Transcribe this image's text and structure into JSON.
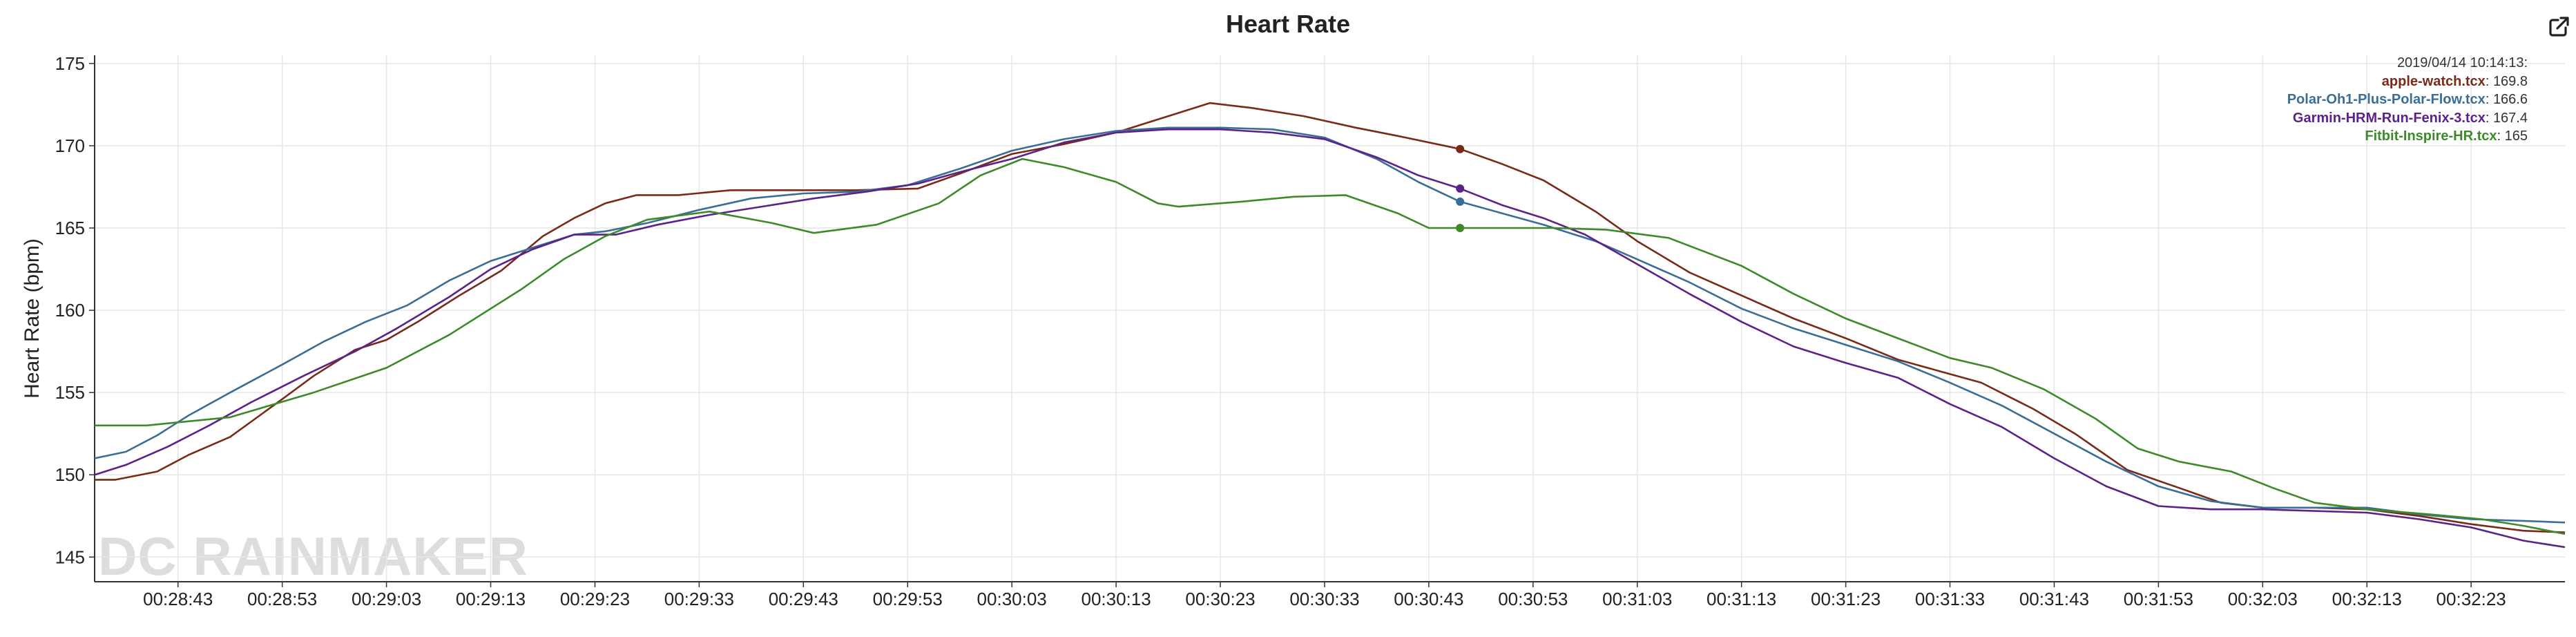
{
  "header": {
    "title": "Heart Rate",
    "export_icon": "external-link-icon"
  },
  "watermark": "DC RAINMAKER",
  "legend": {
    "timestamp": "2019/04/14 10:14:13:",
    "entries": [
      {
        "name": "apple-watch.tcx",
        "value": "169.8"
      },
      {
        "name": "Polar-Oh1-Plus-Polar-Flow.tcx",
        "value": "166.6"
      },
      {
        "name": "Garmin-HRM-Run-Fenix-3.tcx",
        "value": "167.4"
      },
      {
        "name": "Fitbit-Inspire-HR.tcx",
        "value": "165"
      }
    ]
  },
  "chart_data": {
    "type": "line",
    "title": "Heart Rate",
    "xlabel": "",
    "ylabel": "Heart Rate (bpm)",
    "ylim": [
      143.5,
      175.5
    ],
    "xlim": [
      "00:28:35",
      "00:32:32"
    ],
    "grid": true,
    "legend_position": "top-right",
    "x_ticks": [
      "00:28:43",
      "00:28:53",
      "00:29:03",
      "00:29:13",
      "00:29:23",
      "00:29:33",
      "00:29:43",
      "00:29:53",
      "00:30:03",
      "00:30:13",
      "00:30:23",
      "00:30:33",
      "00:30:43",
      "00:30:53",
      "00:31:03",
      "00:31:13",
      "00:31:23",
      "00:31:33",
      "00:31:43",
      "00:31:53",
      "00:32:03",
      "00:32:13",
      "00:32:23"
    ],
    "y_ticks": [
      145,
      150,
      155,
      160,
      165,
      170,
      175
    ],
    "cursor_time": "00:30:46",
    "series": [
      {
        "name": "apple-watch.tcx",
        "color": "#7a2a18",
        "points": [
          [
            "00:28:35",
            149.7
          ],
          [
            "00:28:37",
            149.7
          ],
          [
            "00:28:41",
            150.2
          ],
          [
            "00:28:44",
            151.2
          ],
          [
            "00:28:48",
            152.3
          ],
          [
            "00:28:53",
            154.6
          ],
          [
            "00:28:56",
            156.0
          ],
          [
            "00:29:00",
            157.6
          ],
          [
            "00:29:03",
            158.2
          ],
          [
            "00:29:06",
            159.3
          ],
          [
            "00:29:10",
            160.9
          ],
          [
            "00:29:14",
            162.4
          ],
          [
            "00:29:18",
            164.5
          ],
          [
            "00:29:21",
            165.6
          ],
          [
            "00:29:24",
            166.5
          ],
          [
            "00:29:27",
            167.0
          ],
          [
            "00:29:31",
            167.0
          ],
          [
            "00:29:36",
            167.3
          ],
          [
            "00:29:42",
            167.3
          ],
          [
            "00:29:48",
            167.3
          ],
          [
            "00:29:54",
            167.4
          ],
          [
            "00:29:58",
            168.3
          ],
          [
            "00:30:03",
            169.5
          ],
          [
            "00:30:08",
            170.1
          ],
          [
            "00:30:13",
            170.8
          ],
          [
            "00:30:18",
            171.8
          ],
          [
            "00:30:22",
            172.6
          ],
          [
            "00:30:26",
            172.3
          ],
          [
            "00:30:31",
            171.8
          ],
          [
            "00:30:36",
            171.1
          ],
          [
            "00:30:40",
            170.6
          ],
          [
            "00:30:46",
            169.8
          ],
          [
            "00:30:50",
            168.9
          ],
          [
            "00:30:54",
            167.9
          ],
          [
            "00:30:59",
            166.0
          ],
          [
            "00:31:03",
            164.2
          ],
          [
            "00:31:08",
            162.3
          ],
          [
            "00:31:13",
            160.9
          ],
          [
            "00:31:18",
            159.5
          ],
          [
            "00:31:23",
            158.3
          ],
          [
            "00:31:28",
            157.0
          ],
          [
            "00:31:32",
            156.3
          ],
          [
            "00:31:36",
            155.6
          ],
          [
            "00:31:41",
            154.0
          ],
          [
            "00:31:45",
            152.5
          ],
          [
            "00:31:50",
            150.3
          ],
          [
            "00:31:55",
            149.2
          ],
          [
            "00:31:59",
            148.3
          ],
          [
            "00:32:03",
            148.0
          ],
          [
            "00:32:08",
            148.0
          ],
          [
            "00:32:13",
            147.9
          ],
          [
            "00:32:18",
            147.5
          ],
          [
            "00:32:23",
            147.0
          ],
          [
            "00:32:28",
            146.6
          ],
          [
            "00:32:32",
            146.5
          ]
        ]
      },
      {
        "name": "Polar-Oh1-Plus-Polar-Flow.tcx",
        "color": "#3a6e96",
        "points": [
          [
            "00:28:35",
            151.0
          ],
          [
            "00:28:38",
            151.4
          ],
          [
            "00:28:41",
            152.4
          ],
          [
            "00:28:44",
            153.6
          ],
          [
            "00:28:48",
            155.0
          ],
          [
            "00:28:53",
            156.7
          ],
          [
            "00:28:57",
            158.1
          ],
          [
            "00:29:01",
            159.3
          ],
          [
            "00:29:05",
            160.3
          ],
          [
            "00:29:09",
            161.8
          ],
          [
            "00:29:13",
            163.0
          ],
          [
            "00:29:17",
            163.8
          ],
          [
            "00:29:21",
            164.6
          ],
          [
            "00:29:24",
            164.8
          ],
          [
            "00:29:28",
            165.3
          ],
          [
            "00:29:33",
            166.1
          ],
          [
            "00:29:38",
            166.8
          ],
          [
            "00:29:43",
            167.1
          ],
          [
            "00:29:48",
            167.2
          ],
          [
            "00:29:53",
            167.6
          ],
          [
            "00:29:58",
            168.6
          ],
          [
            "00:30:03",
            169.7
          ],
          [
            "00:30:08",
            170.4
          ],
          [
            "00:30:13",
            170.9
          ],
          [
            "00:30:18",
            171.1
          ],
          [
            "00:30:23",
            171.1
          ],
          [
            "00:30:28",
            171.0
          ],
          [
            "00:30:33",
            170.5
          ],
          [
            "00:30:38",
            169.2
          ],
          [
            "00:30:42",
            167.8
          ],
          [
            "00:30:46",
            166.6
          ],
          [
            "00:30:50",
            165.9
          ],
          [
            "00:30:54",
            165.2
          ],
          [
            "00:30:59",
            164.2
          ],
          [
            "00:31:03",
            163.1
          ],
          [
            "00:31:08",
            161.7
          ],
          [
            "00:31:13",
            160.1
          ],
          [
            "00:31:18",
            158.9
          ],
          [
            "00:31:23",
            157.9
          ],
          [
            "00:31:28",
            156.9
          ],
          [
            "00:31:33",
            155.6
          ],
          [
            "00:31:38",
            154.2
          ],
          [
            "00:31:43",
            152.5
          ],
          [
            "00:31:48",
            150.8
          ],
          [
            "00:31:53",
            149.3
          ],
          [
            "00:31:58",
            148.4
          ],
          [
            "00:32:03",
            148.0
          ],
          [
            "00:32:08",
            148.0
          ],
          [
            "00:32:13",
            148.0
          ],
          [
            "00:32:18",
            147.6
          ],
          [
            "00:32:23",
            147.3
          ],
          [
            "00:32:28",
            147.2
          ],
          [
            "00:32:32",
            147.1
          ]
        ]
      },
      {
        "name": "Garmin-HRM-Run-Fenix-3.tcx",
        "color": "#5b2289",
        "points": [
          [
            "00:28:35",
            150.0
          ],
          [
            "00:28:38",
            150.6
          ],
          [
            "00:28:42",
            151.7
          ],
          [
            "00:28:46",
            153.0
          ],
          [
            "00:28:50",
            154.4
          ],
          [
            "00:28:55",
            156.0
          ],
          [
            "00:29:00",
            157.5
          ],
          [
            "00:29:04",
            158.9
          ],
          [
            "00:29:09",
            160.8
          ],
          [
            "00:29:13",
            162.5
          ],
          [
            "00:29:17",
            163.7
          ],
          [
            "00:29:21",
            164.6
          ],
          [
            "00:29:25",
            164.6
          ],
          [
            "00:29:29",
            165.2
          ],
          [
            "00:29:34",
            165.8
          ],
          [
            "00:29:39",
            166.3
          ],
          [
            "00:29:44",
            166.8
          ],
          [
            "00:29:49",
            167.2
          ],
          [
            "00:29:54",
            167.7
          ],
          [
            "00:29:58",
            168.4
          ],
          [
            "00:30:03",
            169.2
          ],
          [
            "00:30:08",
            170.2
          ],
          [
            "00:30:13",
            170.8
          ],
          [
            "00:30:18",
            171.0
          ],
          [
            "00:30:23",
            171.0
          ],
          [
            "00:30:28",
            170.8
          ],
          [
            "00:30:33",
            170.4
          ],
          [
            "00:30:38",
            169.3
          ],
          [
            "00:30:42",
            168.2
          ],
          [
            "00:30:46",
            167.4
          ],
          [
            "00:30:50",
            166.4
          ],
          [
            "00:30:54",
            165.6
          ],
          [
            "00:30:58",
            164.6
          ],
          [
            "00:31:03",
            162.8
          ],
          [
            "00:31:08",
            161.0
          ],
          [
            "00:31:13",
            159.3
          ],
          [
            "00:31:18",
            157.8
          ],
          [
            "00:31:23",
            156.8
          ],
          [
            "00:31:28",
            155.9
          ],
          [
            "00:31:33",
            154.3
          ],
          [
            "00:31:38",
            152.9
          ],
          [
            "00:31:43",
            151.0
          ],
          [
            "00:31:48",
            149.3
          ],
          [
            "00:31:53",
            148.1
          ],
          [
            "00:31:58",
            147.9
          ],
          [
            "00:32:03",
            147.9
          ],
          [
            "00:32:08",
            147.8
          ],
          [
            "00:32:13",
            147.7
          ],
          [
            "00:32:18",
            147.3
          ],
          [
            "00:32:23",
            146.8
          ],
          [
            "00:32:28",
            146.0
          ],
          [
            "00:32:32",
            145.6
          ]
        ]
      },
      {
        "name": "Fitbit-Inspire-HR.tcx",
        "color": "#3d8a2a",
        "points": [
          [
            "00:28:35",
            153.0
          ],
          [
            "00:28:40",
            153.0
          ],
          [
            "00:28:48",
            153.5
          ],
          [
            "00:28:56",
            155.0
          ],
          [
            "00:29:03",
            156.5
          ],
          [
            "00:29:09",
            158.5
          ],
          [
            "00:29:16",
            161.3
          ],
          [
            "00:29:20",
            163.1
          ],
          [
            "00:29:24",
            164.5
          ],
          [
            "00:29:28",
            165.5
          ],
          [
            "00:29:34",
            166.0
          ],
          [
            "00:29:40",
            165.3
          ],
          [
            "00:29:44",
            164.7
          ],
          [
            "00:29:50",
            165.2
          ],
          [
            "00:29:56",
            166.5
          ],
          [
            "00:30:00",
            168.2
          ],
          [
            "00:30:04",
            169.2
          ],
          [
            "00:30:08",
            168.7
          ],
          [
            "00:30:13",
            167.8
          ],
          [
            "00:30:17",
            166.5
          ],
          [
            "00:30:19",
            166.3
          ],
          [
            "00:30:25",
            166.6
          ],
          [
            "00:30:30",
            166.9
          ],
          [
            "00:30:35",
            167.0
          ],
          [
            "00:30:40",
            165.9
          ],
          [
            "00:30:43",
            165.0
          ],
          [
            "00:30:47",
            165.0
          ],
          [
            "00:30:55",
            165.0
          ],
          [
            "00:31:00",
            164.9
          ],
          [
            "00:31:06",
            164.4
          ],
          [
            "00:31:13",
            162.7
          ],
          [
            "00:31:18",
            161.0
          ],
          [
            "00:31:23",
            159.5
          ],
          [
            "00:31:28",
            158.3
          ],
          [
            "00:31:33",
            157.1
          ],
          [
            "00:31:37",
            156.5
          ],
          [
            "00:31:42",
            155.2
          ],
          [
            "00:31:47",
            153.4
          ],
          [
            "00:31:51",
            151.6
          ],
          [
            "00:31:55",
            150.8
          ],
          [
            "00:32:00",
            150.2
          ],
          [
            "00:32:04",
            149.2
          ],
          [
            "00:32:08",
            148.3
          ],
          [
            "00:32:13",
            147.9
          ],
          [
            "00:32:19",
            147.6
          ],
          [
            "00:32:24",
            147.3
          ],
          [
            "00:32:28",
            146.9
          ],
          [
            "00:32:32",
            146.4
          ]
        ]
      }
    ]
  }
}
